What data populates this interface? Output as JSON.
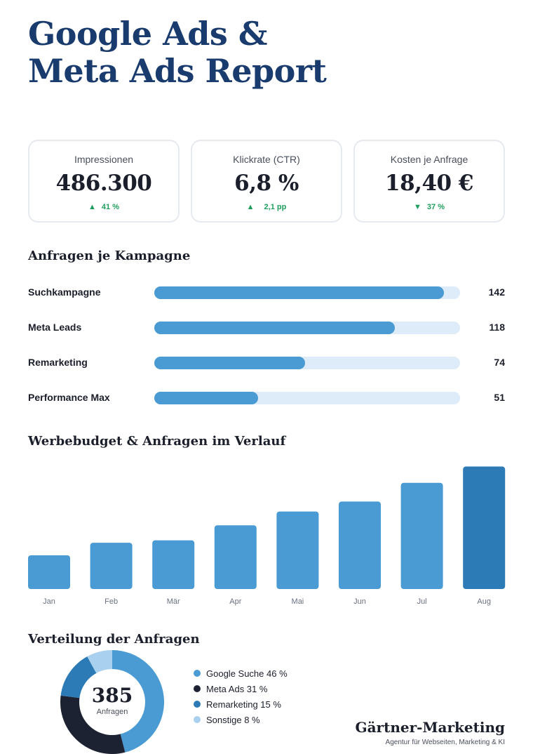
{
  "title": {
    "line1": "Google Ads &",
    "line2": "Meta Ads Report"
  },
  "kpis": [
    {
      "label": "Impressionen",
      "value": "486.300",
      "trend_arrow": "▲",
      "trend": "41 %",
      "trend_color": "#1e9e5e"
    },
    {
      "label": "Klickrate (CTR)",
      "value": "6,8 %",
      "trend_arrow": "▲",
      "trend": "2,1 pp",
      "trend_color": "#1e9e5e"
    },
    {
      "label": "Kosten je Anfrage",
      "value": "18,40 €",
      "trend_arrow": "▼",
      "trend": "37 %",
      "trend_color": "#1e9e5e"
    }
  ],
  "sections": {
    "campaigns": "Anfragen je Kampagne",
    "monthly": "Werbebudget & Anfragen im Verlauf",
    "distribution": "Verteilung der Anfragen"
  },
  "chart_data": [
    {
      "type": "bar",
      "orientation": "horizontal",
      "title": "Anfragen je Kampagne",
      "categories": [
        "Suchkampagne",
        "Meta Leads",
        "Remarketing",
        "Performance Max"
      ],
      "values": [
        142,
        118,
        74,
        51
      ],
      "value_labels": [
        "142",
        "118",
        "74",
        "51"
      ],
      "xlim": [
        0,
        150
      ],
      "colors": {
        "bar": "#4a9ad4",
        "track": "#deebf8"
      }
    },
    {
      "type": "bar",
      "title": "Werbebudget & Anfragen im Verlauf",
      "categories": [
        "Jan",
        "Feb",
        "Mär",
        "Apr",
        "Mai",
        "Jun",
        "Jul",
        "Aug"
      ],
      "values": [
        27,
        37,
        39,
        51,
        62,
        70,
        85,
        98
      ],
      "ylim": [
        0,
        100
      ],
      "colors": {
        "bar": "#4a9ad4",
        "highlight": "#2c7bb6"
      },
      "highlight_index": 7
    },
    {
      "type": "pie",
      "variant": "donut",
      "title": "Verteilung der Anfragen",
      "total": "385",
      "total_label": "Anfragen",
      "slices": [
        {
          "label": "Google Suche 46 %",
          "value": 46,
          "color": "#4a9ad4"
        },
        {
          "label": "Meta Ads 31 %",
          "value": 31,
          "color": "#1d2233"
        },
        {
          "label": "Remarketing 15 %",
          "value": 15,
          "color": "#2c7bb6"
        },
        {
          "label": "Sonstige 8 %",
          "value": 8,
          "color": "#a9d1ef"
        }
      ]
    }
  ],
  "brand": {
    "name": "Gärtner-Marketing",
    "tagline": "Agentur für Webseiten, Marketing & KI"
  }
}
